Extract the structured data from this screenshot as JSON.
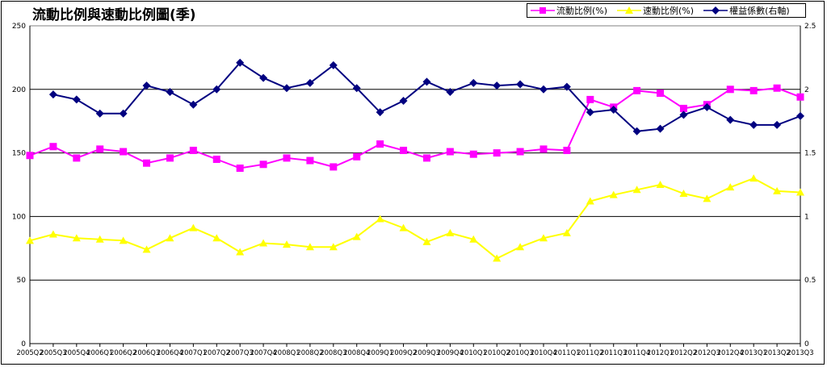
{
  "chart_data": {
    "type": "line",
    "title": "流動比例與速動比例圖(季)",
    "categories": [
      "2005Q2",
      "2005Q3",
      "2005Q4",
      "2006Q1",
      "2006Q2",
      "2006Q3",
      "2006Q4",
      "2007Q1",
      "2007Q2",
      "2007Q3",
      "2007Q4",
      "2008Q1",
      "2008Q2",
      "2008Q3",
      "2008Q4",
      "2009Q1",
      "2009Q2",
      "2009Q3",
      "2009Q4",
      "2010Q1",
      "2010Q2",
      "2010Q3",
      "2010Q4",
      "2011Q1",
      "2011Q2",
      "2011Q3",
      "2011Q4",
      "2012Q1",
      "2012Q2",
      "2012Q3",
      "2012Q4",
      "2013Q1",
      "2013Q2",
      "2013Q3"
    ],
    "y_left": {
      "min": 0,
      "max": 250,
      "ticks": [
        "0",
        "50",
        "100",
        "150",
        "200",
        "250"
      ]
    },
    "y_right": {
      "min": 0,
      "max": 2.5,
      "ticks": [
        "0",
        "0.5",
        "1",
        "1.5",
        "2",
        "2.5"
      ]
    },
    "series": [
      {
        "name": "流動比例(%)",
        "color": "#ff00ff",
        "marker": "square",
        "axis": "left",
        "values": [
          148,
          155,
          146,
          153,
          151,
          142,
          146,
          152,
          145,
          138,
          141,
          146,
          144,
          139,
          147,
          157,
          152,
          146,
          151,
          149,
          150,
          151,
          153,
          152,
          192,
          186,
          199,
          197,
          185,
          188,
          200,
          199,
          201,
          194
        ]
      },
      {
        "name": "速動比例(%)",
        "color": "#ffff00",
        "marker": "triangle",
        "axis": "left",
        "values": [
          81,
          86,
          83,
          82,
          81,
          74,
          83,
          91,
          83,
          72,
          79,
          78,
          76,
          76,
          84,
          98,
          91,
          80,
          87,
          82,
          67,
          76,
          83,
          87,
          112,
          117,
          121,
          125,
          118,
          114,
          123,
          130,
          120,
          119
        ]
      },
      {
        "name": "權益係數(右軸)",
        "color": "#000080",
        "marker": "diamond",
        "axis": "right",
        "values": [
          null,
          1.96,
          1.92,
          1.81,
          1.81,
          2.03,
          1.98,
          1.88,
          2.0,
          2.21,
          2.09,
          2.01,
          2.05,
          2.19,
          2.01,
          1.82,
          1.91,
          2.06,
          1.98,
          2.05,
          2.03,
          2.04,
          2.0,
          2.02,
          1.82,
          1.84,
          1.67,
          1.69,
          1.8,
          1.86,
          1.76,
          1.72,
          1.72,
          1.79
        ]
      }
    ],
    "grid": true,
    "legend": "top-right"
  }
}
